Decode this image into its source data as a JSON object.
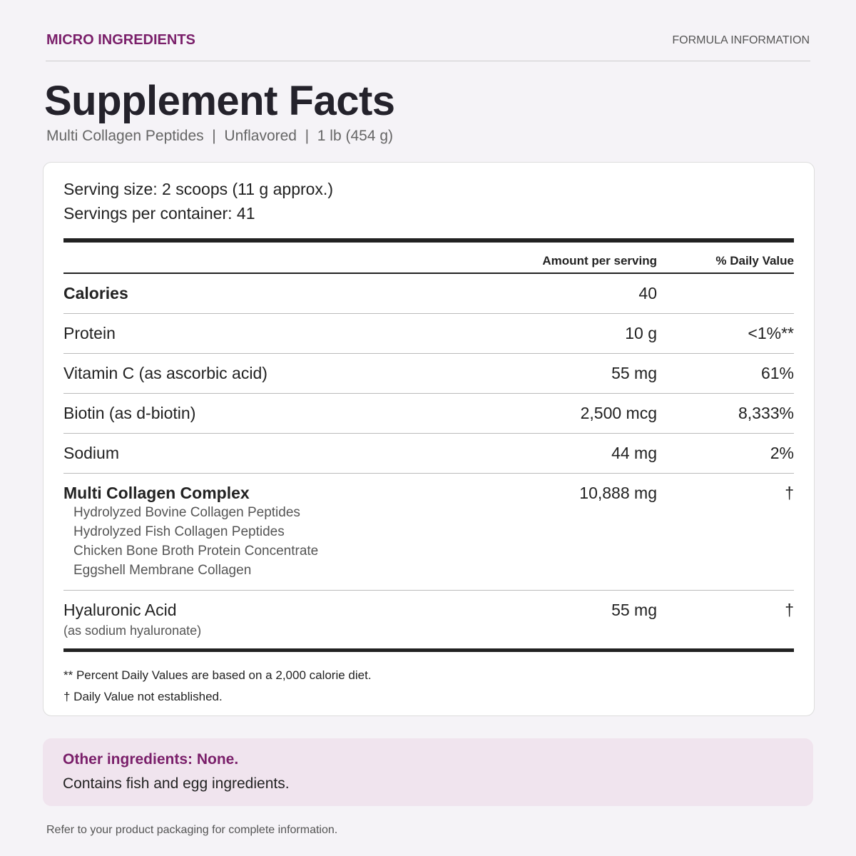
{
  "header": {
    "brand": "MICRO INGREDIENTS",
    "section": "FORMULA INFORMATION"
  },
  "title": "Supplement Facts",
  "subtitle": "Multi Collagen Peptides  |  Unflavored  |  1 lb (454 g)",
  "serving": {
    "size": "Serving size: 2 scoops (11 g approx.)",
    "per_container": "Servings per container: 41"
  },
  "columns": {
    "amount": "Amount per serving",
    "daily_value": "% Daily Value"
  },
  "rows": [
    {
      "name": "Calories",
      "amount": "40",
      "bold": true
    },
    {
      "name": "Protein",
      "amount": "10 g",
      "daily_value": "<1%**"
    },
    {
      "name": "Vitamin C (as ascorbic acid)",
      "amount": "55 mg",
      "daily_value": "61%"
    },
    {
      "name": "Biotin (as d-biotin)",
      "amount": "2,500 mcg",
      "daily_value": "8,333%"
    },
    {
      "name": "Sodium",
      "amount": "44 mg",
      "daily_value": "2%"
    },
    {
      "name": "Multi Collagen Complex",
      "amount": "10,888 mg",
      "daily_value": "†",
      "bold": true,
      "items": [
        "Hydrolyzed Bovine Collagen Peptides",
        "Hydrolyzed Fish Collagen Peptides",
        "Chicken Bone Broth Protein Concentrate",
        "Eggshell Membrane Collagen"
      ]
    },
    {
      "name": "Hyaluronic Acid",
      "note": "(as sodium hyaluronate)",
      "amount": "55 mg",
      "daily_value": "†"
    }
  ],
  "footnotes": [
    "** Percent Daily Values are based on a 2,000 calorie diet.",
    "† Daily Value not established."
  ],
  "other": {
    "title": "Other ingredients: None.",
    "text": "Contains fish and egg ingredients."
  },
  "footer": "Refer to your product packaging for complete information."
}
